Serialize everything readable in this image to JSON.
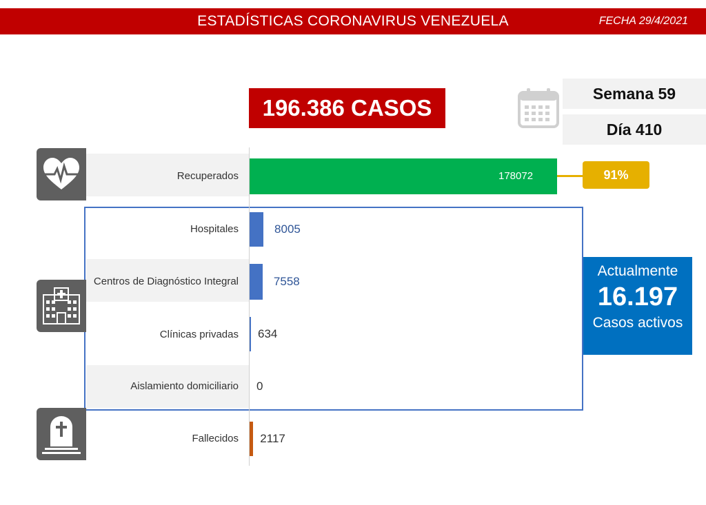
{
  "header": {
    "title": "ESTADÍSTICAS CORONAVIRUS VENEZUELA",
    "date": "FECHA 29/4/2021"
  },
  "total_cases": "196.386 CASOS",
  "week": "Semana 59",
  "day": "Día 410",
  "active": {
    "heading": "Actualmente",
    "value": "16.197",
    "caption": "Casos activos"
  },
  "recovered_pct": "91%",
  "icons": {
    "heart": "heart-pulse-icon",
    "hospital": "hospital-icon",
    "grave": "tombstone-icon",
    "calendar": "calendar-icon"
  },
  "colors": {
    "banner": "#c00000",
    "recovered": "#00b050",
    "active_beds": "#4472c4",
    "deaths": "#c55a11",
    "badge": "#e6b000",
    "active_box": "#0070c0"
  },
  "chart_data": {
    "type": "bar",
    "orientation": "horizontal",
    "categories": [
      "Recuperados",
      "Hospitales",
      "Centros de Diagnóstico Integral",
      "Clínicas privadas",
      "Aislamiento domiciliario",
      "Fallecidos"
    ],
    "values": [
      178072,
      8005,
      7558,
      634,
      0,
      2117
    ],
    "value_labels": [
      "178072",
      "8005",
      "7558",
      "634",
      "0",
      "2117"
    ],
    "xlim": [
      0,
      178072
    ]
  }
}
